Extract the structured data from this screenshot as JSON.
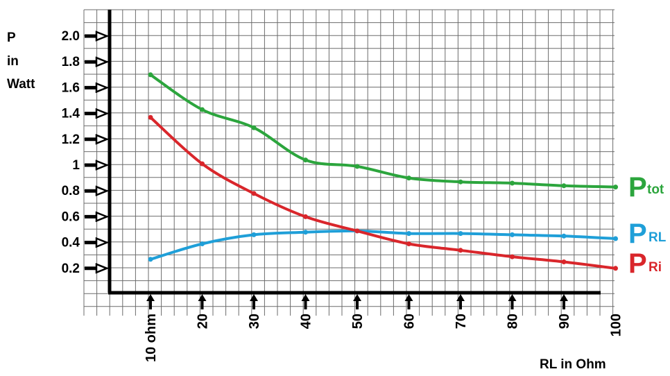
{
  "chart_data": {
    "type": "line",
    "y_axis_title": [
      "P",
      "in",
      "Watt"
    ],
    "x_axis_title": "RL in Ohm",
    "y_tick_labels": [
      "0.2",
      "0.4",
      "0.6",
      "0.8",
      "1",
      "1.2",
      "1.4",
      "1.6",
      "1.8",
      "2.0"
    ],
    "y_ticks": [
      0.2,
      0.4,
      0.6,
      0.8,
      1.0,
      1.2,
      1.4,
      1.6,
      1.8,
      2.0
    ],
    "x_tick_labels": [
      "10 ohm",
      "20",
      "30",
      "40",
      "50",
      "60",
      "70",
      "80",
      "90",
      "100"
    ],
    "x_ticks": [
      10,
      20,
      30,
      40,
      50,
      60,
      70,
      80,
      90,
      100
    ],
    "xlim": [
      10,
      100
    ],
    "ylim": [
      0,
      2.0
    ],
    "grid": true,
    "legend_placement": "right",
    "series": [
      {
        "name": "P",
        "subscript": "tot",
        "color": "#2ca53d",
        "x": [
          10,
          20,
          30,
          40,
          50,
          60,
          70,
          80,
          90,
          100
        ],
        "y": [
          1.7,
          1.43,
          1.29,
          1.04,
          0.99,
          0.9,
          0.87,
          0.86,
          0.84,
          0.83
        ]
      },
      {
        "name": "P",
        "subscript": "RL",
        "color": "#1f9fd8",
        "x": [
          10,
          20,
          30,
          40,
          50,
          60,
          70,
          80,
          90,
          100
        ],
        "y": [
          0.27,
          0.39,
          0.46,
          0.48,
          0.49,
          0.47,
          0.47,
          0.46,
          0.45,
          0.43
        ]
      },
      {
        "name": "P",
        "subscript": "Ri",
        "color": "#d9262b",
        "x": [
          10,
          20,
          30,
          40,
          50,
          60,
          70,
          80,
          90,
          100
        ],
        "y": [
          1.37,
          1.01,
          0.78,
          0.6,
          0.49,
          0.39,
          0.34,
          0.29,
          0.25,
          0.2
        ]
      }
    ]
  }
}
